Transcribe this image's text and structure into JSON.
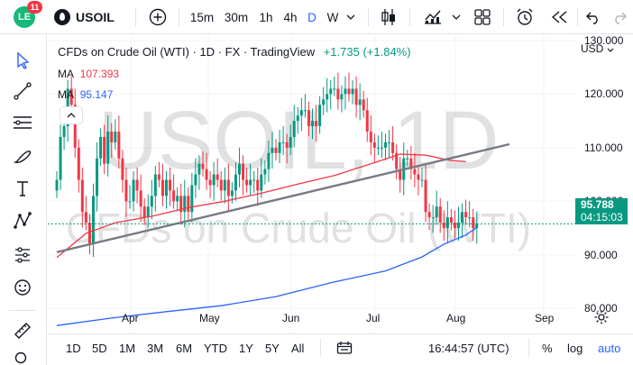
{
  "topbar": {
    "notifications": "11",
    "symbol": "USOIL",
    "intervals": [
      "15m",
      "30m",
      "1h",
      "4h",
      "D",
      "W"
    ],
    "active_interval": "D"
  },
  "legend": {
    "title": "CFDs on Crude Oil (WTI) · 1D · FX · TradingView",
    "change": "+1.735 (+1.84%)",
    "ma1_label": "MA",
    "ma1_value": "107.393",
    "ma2_label": "MA",
    "ma2_value": "95.147"
  },
  "watermark": {
    "line1": "USOIL, 1D",
    "line2": "CFDs on Crude Oil (WTI)"
  },
  "price_scale": {
    "currency": "USD",
    "labels": [
      "130.000",
      "120.000",
      "110.000",
      "100.000",
      "90.000",
      "80.000"
    ],
    "last_price": "95.788",
    "countdown": "04:15:03"
  },
  "time_axis": {
    "labels": [
      "Apr",
      "May",
      "Jun",
      "Jul",
      "Aug",
      "Sep"
    ]
  },
  "bottombar": {
    "ranges": [
      "1D",
      "5D",
      "1M",
      "3M",
      "6M",
      "YTD",
      "1Y",
      "5Y",
      "All"
    ],
    "clock": "16:44:57 (UTC)",
    "percent": "%",
    "log": "log",
    "auto": "auto"
  },
  "colors": {
    "up": "#089981",
    "down": "#f23645",
    "ma_red": "#f23645",
    "ma_blue": "#2962ff",
    "trendline": "#787b86",
    "accent": "#2962ff"
  },
  "chart_data": {
    "type": "candlestick",
    "ylim": [
      76,
      131
    ],
    "price_ticks": [
      130,
      120,
      110,
      100,
      90,
      80
    ],
    "time_ticks": [
      "Apr",
      "May",
      "Jun",
      "Jul",
      "Aug",
      "Sep"
    ],
    "last_price": 95.788,
    "closes": [
      104,
      112,
      114,
      121,
      118,
      110,
      104,
      98,
      96,
      92,
      101,
      108,
      112,
      107,
      113,
      111,
      113,
      108,
      104,
      100,
      100,
      104,
      102,
      99,
      97,
      99,
      101,
      105,
      104,
      101,
      104,
      102,
      100,
      101,
      98,
      101,
      98,
      103,
      105,
      107,
      106,
      104,
      103,
      105,
      104,
      102,
      104,
      101,
      102,
      105,
      107,
      104,
      103,
      104,
      104,
      102,
      105,
      106,
      109,
      110,
      109,
      111,
      111,
      110,
      112,
      115,
      116,
      117,
      117,
      114,
      115,
      114,
      118,
      119,
      120,
      121,
      121,
      119,
      120,
      121,
      120,
      121,
      118,
      119,
      117,
      113,
      111,
      110,
      110,
      110,
      111,
      111,
      109,
      106,
      104,
      108,
      108,
      106,
      105,
      104,
      104,
      98,
      97,
      97,
      99,
      96,
      95,
      97,
      96,
      95,
      96,
      98,
      97,
      97,
      95,
      95.788
    ],
    "ma_slow": [
      95.2,
      95.4,
      95.6,
      95.8,
      96.0,
      96.3,
      96.6,
      96.9,
      97.2,
      97.5,
      97.8,
      98.1,
      98.4,
      98.7,
      99.0,
      99.3,
      99.6,
      99.9,
      100.2,
      100.5,
      100.8,
      101.1,
      101.4,
      101.7,
      102.0,
      102.3,
      102.6,
      102.9,
      103.2,
      103.5,
      103.8,
      104.1,
      104.4,
      104.7,
      105.0,
      105.3,
      105.6,
      105.9,
      106.2,
      106.5,
      106.8,
      107.1,
      107.393
    ],
    "ma_blue_points": [
      [
        0,
        76.8
      ],
      [
        15,
        78.2
      ],
      [
        30,
        79.4
      ],
      [
        45,
        80.5
      ],
      [
        60,
        82.2
      ],
      [
        75,
        84.8
      ],
      [
        90,
        87.0
      ],
      [
        100,
        89.6
      ],
      [
        106,
        92.0
      ],
      [
        112,
        93.7
      ],
      [
        115,
        95.147
      ]
    ],
    "ma_red_points": [
      [
        0,
        89.5
      ],
      [
        8,
        94.0
      ],
      [
        16,
        96.0
      ],
      [
        26,
        97.2
      ],
      [
        36,
        98.8
      ],
      [
        46,
        100.0
      ],
      [
        56,
        101.5
      ],
      [
        66,
        103.2
      ],
      [
        76,
        104.8
      ],
      [
        86,
        107.0
      ],
      [
        94,
        108.8
      ],
      [
        101,
        108.6
      ],
      [
        108,
        107.6
      ],
      [
        112,
        107.393
      ]
    ],
    "trendline_points": [
      [
        0,
        90.5
      ],
      [
        140,
        110.2
      ]
    ]
  }
}
